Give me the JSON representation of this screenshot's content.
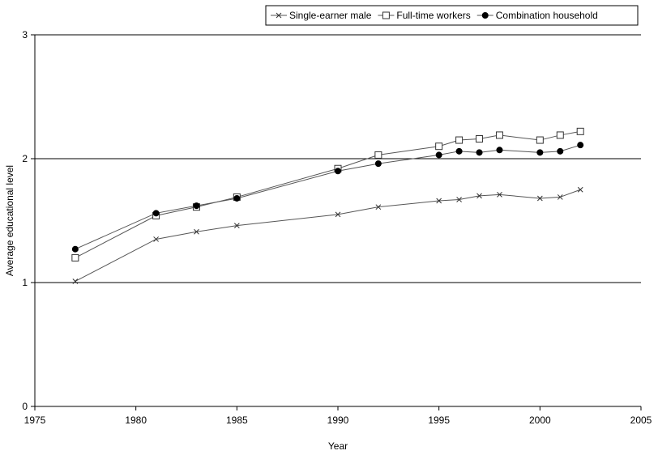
{
  "chart_data": {
    "type": "line",
    "xlabel": "Year",
    "ylabel": "Average educational level",
    "xlim": [
      1975,
      2005
    ],
    "ylim": [
      0,
      3
    ],
    "x_ticks": [
      1975,
      1980,
      1985,
      1990,
      1995,
      2000,
      2005
    ],
    "y_ticks": [
      0,
      1,
      2,
      3
    ],
    "grid": "horizontal major gridlines",
    "legend_position": "top-right",
    "series": [
      {
        "name": "Single-earner male",
        "marker": "x",
        "x": [
          1977,
          1981,
          1983,
          1985,
          1990,
          1992,
          1995,
          1996,
          1997,
          1998,
          2000,
          2001,
          2002
        ],
        "values": [
          1.01,
          1.35,
          1.41,
          1.46,
          1.55,
          1.61,
          1.66,
          1.67,
          1.7,
          1.71,
          1.68,
          1.69,
          1.75
        ]
      },
      {
        "name": "Full-time workers",
        "marker": "open-square",
        "x": [
          1977,
          1981,
          1983,
          1985,
          1990,
          1992,
          1995,
          1996,
          1997,
          1998,
          2000,
          2001,
          2002
        ],
        "values": [
          1.2,
          1.54,
          1.61,
          1.69,
          1.92,
          2.03,
          2.1,
          2.15,
          2.16,
          2.19,
          2.15,
          2.19,
          2.22
        ]
      },
      {
        "name": "Combination household",
        "marker": "filled-circle",
        "x": [
          1977,
          1981,
          1983,
          1985,
          1990,
          1992,
          1995,
          1996,
          1997,
          1998,
          2000,
          2001,
          2002
        ],
        "values": [
          1.27,
          1.56,
          1.62,
          1.68,
          1.9,
          1.96,
          2.03,
          2.06,
          2.05,
          2.07,
          2.05,
          2.06,
          2.11
        ]
      }
    ],
    "colors": {
      "line": "#555555",
      "marker": "#333333",
      "axis": "#000000",
      "grid": "#000000"
    }
  }
}
